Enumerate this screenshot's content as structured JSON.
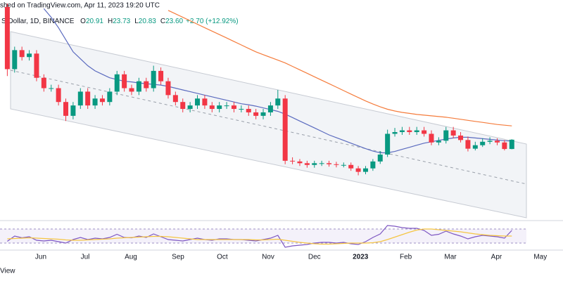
{
  "header": {
    "published": "shed on TradingView.com, Apr 11, 2023 19:20 UTC",
    "symbol": "S.Dollar, 1D, BINANCE",
    "ohlc": [
      {
        "label": "O",
        "value": "20.91"
      },
      {
        "label": "H",
        "value": "23.73"
      },
      {
        "label": "L",
        "value": "20.83"
      },
      {
        "label": "C",
        "value": "23.60"
      }
    ],
    "change": "+2.70 (+12.92%)"
  },
  "footer": "View",
  "chart_data": [
    {
      "type": "candlestick",
      "ylim": [
        0,
        64
      ],
      "xlim": [
        -1,
        76
      ],
      "up_color": "#089981",
      "down_color": "#f23645",
      "xticks": [
        {
          "value": 4.58,
          "label": "Jun"
        },
        {
          "value": 10.65,
          "label": "Jul"
        },
        {
          "value": 16.9,
          "label": "Aug"
        },
        {
          "value": 23.35,
          "label": "Sep"
        },
        {
          "value": 29.4,
          "label": "Oct"
        },
        {
          "value": 35.67,
          "label": "Nov"
        },
        {
          "value": 42.0,
          "label": "Dec"
        },
        {
          "value": 48.3,
          "label": "2023"
        },
        {
          "value": 54.5,
          "label": "Feb"
        },
        {
          "value": 60.6,
          "label": "Mar"
        },
        {
          "value": 66.9,
          "label": "Apr"
        },
        {
          "value": 72.9,
          "label": "May"
        }
      ],
      "open": [
        62,
        44,
        49.5,
        47.5,
        48.5,
        41.5,
        38.5,
        38.5,
        34.5,
        30.5,
        33.5,
        37.5,
        33.5,
        35.5,
        34.5,
        37.5,
        42.5,
        38.5,
        37.5,
        40.5,
        38.5,
        43.5,
        40.5,
        36.5,
        34.5,
        32.5,
        33.5,
        35.5,
        33.5,
        32.5,
        33.5,
        33.5,
        32.5,
        32.5,
        31.5,
        30.5,
        31.5,
        33.5,
        35.5,
        17.5,
        17.3,
        16.8,
        16.3,
        16.8,
        16.8,
        16.5,
        16.3,
        16.3,
        15.3,
        14.3,
        15.3,
        17.3,
        19.3,
        25.3,
        25.8,
        26.3,
        25.8,
        26.3,
        25.3,
        22.8,
        23.3,
        26.3,
        24.8,
        23.5,
        21.0,
        22.0,
        23.0,
        23.3,
        22.8,
        20.91
      ],
      "high": [
        63,
        50.5,
        50.5,
        49.5,
        49.5,
        42.5,
        39.5,
        39.5,
        35.5,
        34.5,
        38.5,
        38.5,
        36.5,
        36.5,
        38.5,
        43.5,
        43.5,
        39.5,
        41.5,
        41.5,
        45,
        44.5,
        41.5,
        37.5,
        35.5,
        34.5,
        36.5,
        36.5,
        34.5,
        34.5,
        34.5,
        34.5,
        33.5,
        33.5,
        32.5,
        32.5,
        34.5,
        38,
        36.5,
        18.5,
        18,
        17.5,
        17.5,
        17.5,
        17.5,
        17.2,
        17,
        17,
        16,
        16,
        18,
        20.3,
        26.5,
        27,
        27.3,
        27.3,
        27.3,
        27.3,
        26.3,
        24.3,
        27.3,
        27.3,
        25.8,
        24.5,
        23,
        24,
        24.3,
        24,
        23.5,
        23.73
      ],
      "low": [
        42,
        43,
        46.5,
        46.5,
        40.5,
        37.5,
        37.5,
        33.5,
        29,
        29.5,
        32.5,
        32.5,
        32.5,
        33.5,
        33.5,
        36.5,
        37.5,
        36.5,
        36.5,
        37.5,
        37.5,
        39.5,
        35.5,
        33.5,
        31.5,
        31.5,
        32.5,
        32.5,
        31.5,
        31.5,
        32.5,
        31.5,
        31.5,
        30.5,
        29.5,
        29.5,
        30.5,
        32.5,
        16.5,
        16.5,
        16,
        15.5,
        15.5,
        16,
        15.8,
        15.6,
        15.6,
        14.6,
        13.3,
        13.6,
        14.6,
        16.6,
        18.6,
        24.5,
        25,
        25,
        25,
        24.5,
        22,
        22,
        22.5,
        24,
        22.8,
        20.2,
        20.5,
        21.5,
        22.3,
        22,
        20.5,
        20.83
      ],
      "close": [
        44,
        49.5,
        47.5,
        48.5,
        41.5,
        38.5,
        38.5,
        34.5,
        30.5,
        33.5,
        37.5,
        33.5,
        35.5,
        34.5,
        37.5,
        42.5,
        38.5,
        37.5,
        40.5,
        38.5,
        43.5,
        40.5,
        36.5,
        34.5,
        32.5,
        33.5,
        35.5,
        33.5,
        32.5,
        33.5,
        33.5,
        32.5,
        32.5,
        31.5,
        30.5,
        31.5,
        33.5,
        35.5,
        17.5,
        17.3,
        16.8,
        16.3,
        16.8,
        16.8,
        16.5,
        16.3,
        16.3,
        15.3,
        14.3,
        15.3,
        17.3,
        19.3,
        25.3,
        25.8,
        26.3,
        25.8,
        26.3,
        25.3,
        22.8,
        23.3,
        26.3,
        24.8,
        23.5,
        21.0,
        22.0,
        23.0,
        23.3,
        22.8,
        20.91,
        23.6
      ],
      "lines": [
        {
          "color": "#5b6bbf",
          "values": [
            null,
            null,
            null,
            null,
            null,
            61.5,
            59,
            56,
            52.5,
            49,
            47,
            45,
            43.5,
            42.5,
            41.5,
            41,
            40.5,
            40.3,
            40,
            39.8,
            39.6,
            39.4,
            39,
            38.5,
            38,
            37.5,
            37,
            36.5,
            36,
            35.5,
            35,
            34.5,
            34,
            33.7,
            33.3,
            32.8,
            32.3,
            31.8,
            31,
            30,
            29,
            28,
            27,
            26,
            25,
            24.2,
            23.4,
            22.6,
            21.8,
            21,
            20.3,
            19.8,
            19.8,
            20.2,
            20.8,
            21.4,
            22,
            22.6,
            23,
            23.4,
            23.8,
            24.1,
            24.3,
            24.3,
            24.1,
            23.9,
            23.7,
            23.5,
            23.3,
            23.2
          ]
        },
        {
          "color": "#f57c3c",
          "values": [
            null,
            null,
            null,
            null,
            null,
            null,
            null,
            null,
            null,
            null,
            null,
            null,
            null,
            null,
            null,
            null,
            null,
            null,
            null,
            null,
            null,
            null,
            61,
            60,
            59,
            58,
            57,
            56,
            55,
            54,
            53,
            52,
            51,
            50,
            49,
            48.2,
            47.4,
            46.6,
            45.8,
            44.8,
            43.8,
            42.8,
            41.8,
            40.8,
            39.8,
            38.8,
            37.8,
            36.8,
            35.8,
            34.8,
            33.9,
            33.1,
            32.4,
            31.9,
            31.5,
            31.2,
            30.9,
            30.7,
            30.5,
            30.3,
            30.1,
            29.8,
            29.5,
            29.2,
            28.9,
            28.6,
            28.3,
            28,
            27.8,
            27.6
          ]
        }
      ]
    },
    {
      "type": "line",
      "ylim": [
        0,
        100
      ],
      "levels": [
        30,
        70
      ],
      "series": [
        {
          "color": "#7e57c2",
          "values": [
            35,
            50,
            45,
            48,
            38,
            36,
            38,
            34,
            30,
            40,
            46,
            40,
            44,
            42,
            46,
            55,
            46,
            45,
            50,
            46,
            56,
            48,
            40,
            38,
            36,
            40,
            44,
            40,
            38,
            42,
            42,
            40,
            40,
            38,
            36,
            40,
            44,
            52,
            18,
            22,
            24,
            26,
            30,
            32,
            32,
            30,
            32,
            28,
            26,
            34,
            46,
            56,
            80,
            78,
            74,
            72,
            72,
            66,
            52,
            55,
            64,
            56,
            50,
            42,
            48,
            52,
            50,
            48,
            44,
            66
          ]
        },
        {
          "color": "#f5c542",
          "values": [
            42,
            43,
            44,
            45,
            44,
            43,
            42,
            41,
            39,
            38,
            38,
            39,
            40,
            41,
            42,
            44,
            45,
            46,
            47,
            48,
            49,
            49,
            48,
            46,
            44,
            42,
            40,
            40,
            40,
            40,
            40,
            40,
            40,
            40,
            39,
            39,
            40,
            41,
            38,
            35,
            32,
            30,
            28,
            27,
            27,
            28,
            29,
            30,
            30,
            30,
            31,
            34,
            40,
            47,
            54,
            61,
            67,
            70,
            70,
            68,
            66,
            64,
            62,
            59,
            56,
            54,
            52,
            51,
            50,
            50
          ]
        }
      ]
    }
  ]
}
